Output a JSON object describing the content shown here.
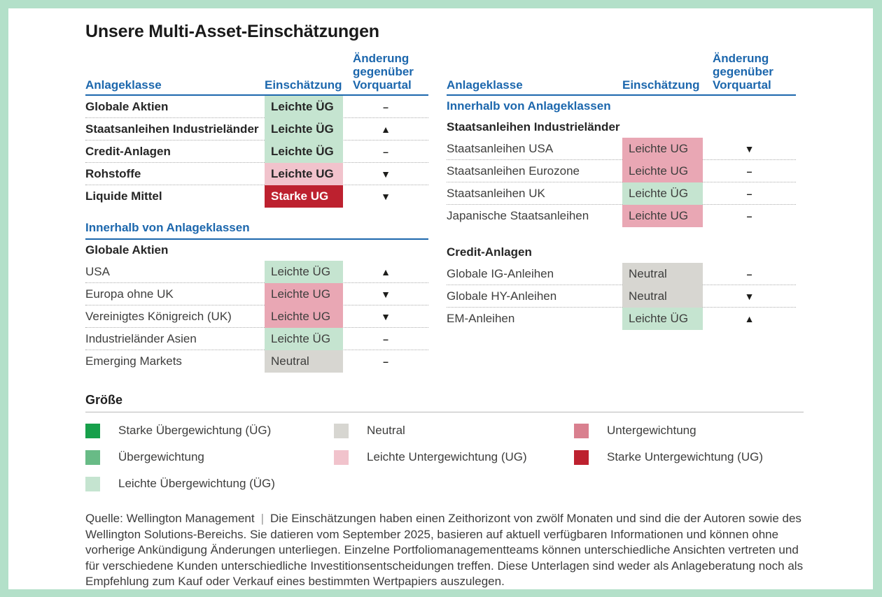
{
  "title": "Unsere Multi-Asset-Einschätzungen",
  "columns": {
    "asset_class": "Anlageklasse",
    "assessment": "Einschätzung",
    "change_line1": "Änderung",
    "change_line2": "gegenüber",
    "change_line3": "Vorquartal"
  },
  "left_table": {
    "main_rows": [
      {
        "label": "Globale Aktien",
        "assessment": "Leichte ÜG",
        "tone": "light-green",
        "change": "–"
      },
      {
        "label": "Staatsanleihen Industrieländer",
        "assessment": "Leichte ÜG",
        "tone": "light-green",
        "change": "▲"
      },
      {
        "label": "Credit-Anlagen",
        "assessment": "Leichte ÜG",
        "tone": "light-green",
        "change": "–"
      },
      {
        "label": "Rohstoffe",
        "assessment": "Leichte UG",
        "tone": "pale-pink",
        "change": "▼"
      },
      {
        "label": "Liquide Mittel",
        "assessment": "Starke UG",
        "tone": "strong-red",
        "change": "▼"
      }
    ],
    "section_title": "Innerhalb von Anlageklassen",
    "group_title": "Globale Aktien",
    "group_rows": [
      {
        "label": "USA",
        "assessment": "Leichte ÜG",
        "tone": "light-green",
        "change": "▲"
      },
      {
        "label": "Europa ohne UK",
        "assessment": "Leichte UG",
        "tone": "soft-rose",
        "change": "▼"
      },
      {
        "label": "Vereinigtes Königreich (UK)",
        "assessment": "Leichte UG",
        "tone": "soft-rose",
        "change": "▼"
      },
      {
        "label": "Industrieländer Asien",
        "assessment": "Leichte ÜG",
        "tone": "light-green",
        "change": "–"
      },
      {
        "label": "Emerging Markets",
        "assessment": "Neutral",
        "tone": "neutral-gray",
        "change": "–"
      }
    ]
  },
  "right_table": {
    "section_title": "Innerhalb von Anlageklassen",
    "group1_title": "Staatsanleihen Industrieländer",
    "group1_rows": [
      {
        "label": "Staatsanleihen USA",
        "assessment": "Leichte UG",
        "tone": "soft-rose",
        "change": "▼"
      },
      {
        "label": "Staatsanleihen Eurozone",
        "assessment": "Leichte UG",
        "tone": "soft-rose",
        "change": "–"
      },
      {
        "label": "Staatsanleihen UK",
        "assessment": "Leichte ÜG",
        "tone": "light-green",
        "change": "–"
      },
      {
        "label": "Japanische Staatsanleihen",
        "assessment": "Leichte UG",
        "tone": "soft-rose",
        "change": "–"
      }
    ],
    "group2_title": "Credit-Anlagen",
    "group2_rows": [
      {
        "label": "Globale IG-Anleihen",
        "assessment": "Neutral",
        "tone": "neutral-gray",
        "change": "–"
      },
      {
        "label": "Globale HY-Anleihen",
        "assessment": "Neutral",
        "tone": "neutral-gray",
        "change": "▼"
      },
      {
        "label": "EM-Anleihen",
        "assessment": "Leichte ÜG",
        "tone": "light-green",
        "change": "▲"
      }
    ]
  },
  "legend": {
    "title": "Größe",
    "columns": [
      {
        "items": [
          {
            "label": "Starke Übergewichtung (ÜG)",
            "tone": "strong-green"
          },
          {
            "label": "Übergewichtung",
            "tone": "medium-green"
          },
          {
            "label": "Leichte Übergewichtung (ÜG)",
            "tone": "light-green"
          }
        ]
      },
      {
        "items": [
          {
            "label": "Neutral",
            "tone": "neutral-gray"
          },
          {
            "label": "Leichte Untergewichtung (UG)",
            "tone": "pale-pink"
          }
        ]
      },
      {
        "items": [
          {
            "label": "Untergewichtung",
            "tone": "rose"
          },
          {
            "label": "Starke Untergewichtung (UG)",
            "tone": "strong-red"
          }
        ]
      }
    ]
  },
  "footnote": {
    "source": "Quelle: Wellington Management",
    "separator": "|",
    "text": "Die Einschätzungen haben einen Zeithorizont von zwölf Monaten und sind die der Autoren sowie des Wellington Solutions-Bereichs. Sie datieren vom September 2025, basieren auf aktuell verfügbaren Informationen und können ohne vorherige Ankündigung Änderungen unterliegen. Einzelne Portfoliomanagementteams können unterschiedliche Ansichten vertreten und für verschiedene Kunden unterschiedliche Investitionsentscheidungen treffen. Diese Unterlagen sind weder als Anlageberatung noch als Empfehlung zum Kauf oder Verkauf eines bestimmten Wertpapiers auszulegen."
  },
  "colors": {
    "frame_mint": "#b3e0c9",
    "accent_blue": "#1c67ad",
    "strong_green": "#17a04b",
    "medium_green": "#68bb86",
    "light_green": "#c5e4d0",
    "neutral_gray": "#d7d6d1",
    "pale_pink": "#f1c3cc",
    "soft_rose": "#e9a7b4",
    "rose": "#d9808f",
    "strong_red": "#bd212f"
  },
  "chart_data": [
    {
      "type": "table",
      "title": "Anlageklassen",
      "columns": [
        "Anlageklasse",
        "Einschätzung",
        "Änderung gegenüber Vorquartal"
      ],
      "rows": [
        [
          "Globale Aktien",
          "Leichte ÜG",
          "–"
        ],
        [
          "Staatsanleihen Industrieländer",
          "Leichte ÜG",
          "▲"
        ],
        [
          "Credit-Anlagen",
          "Leichte ÜG",
          "–"
        ],
        [
          "Rohstoffe",
          "Leichte UG",
          "▼"
        ],
        [
          "Liquide Mittel",
          "Starke UG",
          "▼"
        ]
      ]
    },
    {
      "type": "table",
      "title": "Innerhalb von Anlageklassen – Globale Aktien",
      "columns": [
        "Anlageklasse",
        "Einschätzung",
        "Änderung gegenüber Vorquartal"
      ],
      "rows": [
        [
          "USA",
          "Leichte ÜG",
          "▲"
        ],
        [
          "Europa ohne UK",
          "Leichte UG",
          "▼"
        ],
        [
          "Vereinigtes Königreich (UK)",
          "Leichte UG",
          "▼"
        ],
        [
          "Industrieländer Asien",
          "Leichte ÜG",
          "–"
        ],
        [
          "Emerging Markets",
          "Neutral",
          "–"
        ]
      ]
    },
    {
      "type": "table",
      "title": "Innerhalb von Anlageklassen – Staatsanleihen Industrieländer",
      "columns": [
        "Anlageklasse",
        "Einschätzung",
        "Änderung gegenüber Vorquartal"
      ],
      "rows": [
        [
          "Staatsanleihen USA",
          "Leichte UG",
          "▼"
        ],
        [
          "Staatsanleihen Eurozone",
          "Leichte UG",
          "–"
        ],
        [
          "Staatsanleihen UK",
          "Leichte ÜG",
          "–"
        ],
        [
          "Japanische Staatsanleihen",
          "Leichte UG",
          "–"
        ]
      ]
    },
    {
      "type": "table",
      "title": "Innerhalb von Anlageklassen – Credit-Anlagen",
      "columns": [
        "Anlageklasse",
        "Einschätzung",
        "Änderung gegenüber Vorquartal"
      ],
      "rows": [
        [
          "Globale IG-Anleihen",
          "Neutral",
          "–"
        ],
        [
          "Globale HY-Anleihen",
          "Neutral",
          "▼"
        ],
        [
          "EM-Anleihen",
          "Leichte ÜG",
          "▲"
        ]
      ]
    }
  ]
}
